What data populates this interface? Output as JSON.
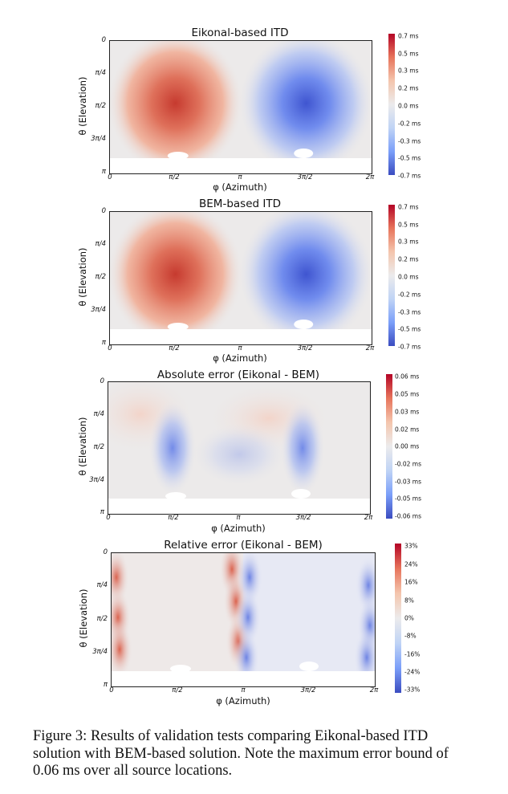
{
  "chart_data": [
    {
      "type": "heatmap",
      "title": "Eikonal-based ITD",
      "xlabel": "φ (Azimuth)",
      "ylabel": "θ (Elevation)",
      "x_ticks": [
        "0",
        "π/2",
        "π",
        "3π/2",
        "2π"
      ],
      "y_ticks": [
        "0",
        "π/4",
        "π/2",
        "3π/4",
        "π"
      ],
      "xlim": [
        0,
        6.2832
      ],
      "ylim": [
        0,
        3.1416
      ],
      "colorbar_ticks": [
        "0.7 ms",
        "0.5 ms",
        "0.3 ms",
        "0.2 ms",
        "0.0 ms",
        "-0.2 ms",
        "-0.3 ms",
        "-0.5 ms",
        "-0.7 ms"
      ],
      "color_range": [
        -0.7,
        0.7
      ],
      "peaks": [
        {
          "phi": 1.5708,
          "theta": 1.5708,
          "value": 0.7
        },
        {
          "phi": 4.7124,
          "theta": 1.5708,
          "value": -0.7
        }
      ],
      "colormap": "coolwarm"
    },
    {
      "type": "heatmap",
      "title": "BEM-based ITD",
      "xlabel": "φ (Azimuth)",
      "ylabel": "θ (Elevation)",
      "x_ticks": [
        "0",
        "π/2",
        "π",
        "3π/2",
        "2π"
      ],
      "y_ticks": [
        "0",
        "π/4",
        "π/2",
        "3π/4",
        "π"
      ],
      "xlim": [
        0,
        6.2832
      ],
      "ylim": [
        0,
        3.1416
      ],
      "colorbar_ticks": [
        "0.7 ms",
        "0.5 ms",
        "0.3 ms",
        "0.2 ms",
        "0.0 ms",
        "-0.2 ms",
        "-0.3 ms",
        "-0.5 ms",
        "-0.7 ms"
      ],
      "color_range": [
        -0.7,
        0.7
      ],
      "peaks": [
        {
          "phi": 1.5708,
          "theta": 1.5708,
          "value": 0.7
        },
        {
          "phi": 4.7124,
          "theta": 1.5708,
          "value": -0.7
        }
      ],
      "colormap": "coolwarm"
    },
    {
      "type": "heatmap",
      "title": "Absolute error (Eikonal - BEM)",
      "xlabel": "φ (Azimuth)",
      "ylabel": "θ (Elevation)",
      "x_ticks": [
        "0",
        "π/2",
        "π",
        "3π/2",
        "2π"
      ],
      "y_ticks": [
        "0",
        "π/4",
        "π/2",
        "3π/4",
        "π"
      ],
      "xlim": [
        0,
        6.2832
      ],
      "ylim": [
        0,
        3.1416
      ],
      "colorbar_ticks": [
        "0.06 ms",
        "0.05 ms",
        "0.03 ms",
        "0.02 ms",
        "0.00 ms",
        "-0.02 ms",
        "-0.03 ms",
        "-0.05 ms",
        "-0.06 ms"
      ],
      "color_range": [
        -0.06,
        0.06
      ],
      "colormap": "coolwarm"
    },
    {
      "type": "heatmap",
      "title": "Relative error (Eikonal - BEM)",
      "xlabel": "φ (Azimuth)",
      "ylabel": "θ (Elevation)",
      "x_ticks": [
        "0",
        "π/2",
        "π",
        "3π/2",
        "2π"
      ],
      "y_ticks": [
        "0",
        "π/4",
        "π/2",
        "3π/4",
        "π"
      ],
      "xlim": [
        0,
        6.2832
      ],
      "ylim": [
        0,
        3.1416
      ],
      "colorbar_ticks": [
        "33%",
        "24%",
        "16%",
        "8%",
        "0%",
        "-8%",
        "-16%",
        "-24%",
        "-33%"
      ],
      "color_range": [
        -33,
        33
      ],
      "colormap": "coolwarm"
    }
  ],
  "caption": "Figure 3: Results of validation tests comparing Eikonal-based ITD solution with BEM-based solution. Note the maximum error bound of 0.06 ms over all source locations."
}
